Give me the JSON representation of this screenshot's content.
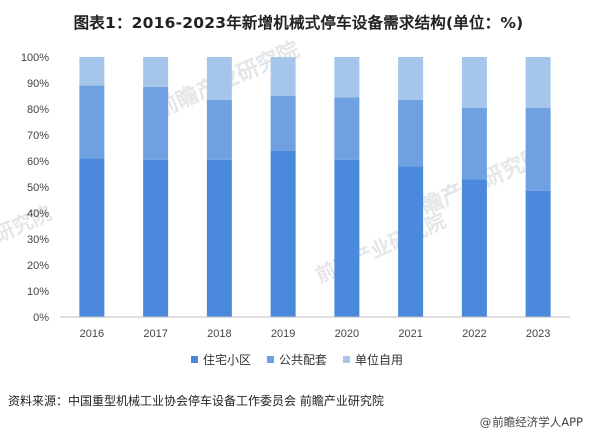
{
  "title": "图表1：2016-2023年新增机械式停车设备需求结构(单位：%)",
  "chart_data": {
    "type": "bar",
    "stacked": true,
    "categories": [
      "2016",
      "2017",
      "2018",
      "2019",
      "2020",
      "2021",
      "2022",
      "2023"
    ],
    "series": [
      {
        "name": "住宅小区",
        "color": "#4a89dc",
        "values": [
          61,
          60.5,
          60.5,
          64,
          60.5,
          58,
          53,
          48.5
        ]
      },
      {
        "name": "公共配套",
        "color": "#6ea0e2",
        "values": [
          28,
          28,
          23,
          21,
          24,
          25.5,
          27.5,
          32
        ]
      },
      {
        "name": "单位自用",
        "color": "#a5c6ea",
        "values": [
          11,
          11.5,
          16.5,
          15,
          15.5,
          16.5,
          19.5,
          19.5
        ]
      }
    ],
    "yticks": [
      "0%",
      "10%",
      "20%",
      "30%",
      "40%",
      "50%",
      "60%",
      "70%",
      "80%",
      "90%",
      "100%"
    ],
    "ylim": [
      0,
      100
    ],
    "grid": false,
    "legend_position": "bottom"
  },
  "source": "资料来源：中国重型机械工业协会停车设备工作委员会 前瞻产业研究院",
  "brand": "前瞻经济学人APP",
  "brand_at": "@",
  "watermarks": [
    "前瞻产业研究院",
    "前瞻产业研究院",
    "研究院",
    "前瞻产业研究院"
  ]
}
